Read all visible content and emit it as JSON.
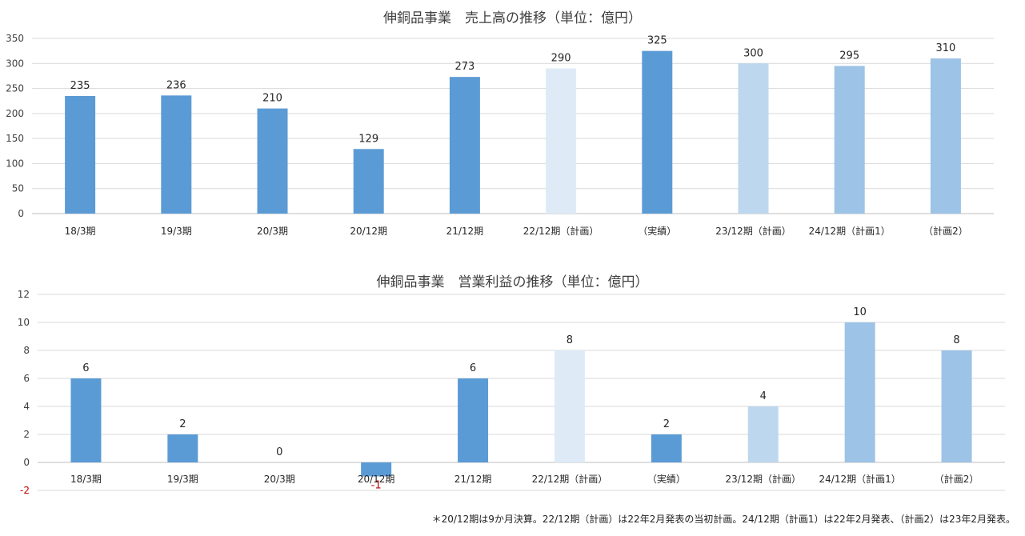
{
  "chart_data": [
    {
      "type": "bar",
      "title": "伸銅品事業　売上高の推移（単位：億円）",
      "categories": [
        "18/3期",
        "19/3期",
        "20/3期",
        "20/12期",
        "21/12期",
        "22/12期（計画）",
        "（実績）",
        "23/12期（計画）",
        "24/12期（計画1）",
        "（計画2）"
      ],
      "values": [
        235,
        236,
        210,
        129,
        273,
        290,
        325,
        300,
        295,
        310
      ],
      "bar_colors": [
        "#5b9bd5",
        "#5b9bd5",
        "#5b9bd5",
        "#5b9bd5",
        "#5b9bd5",
        "#deebf7",
        "#5b9bd5",
        "#bdd7ee",
        "#9dc3e6",
        "#9dc3e6"
      ],
      "ylim": [
        0,
        350
      ],
      "yticks": [
        0,
        50,
        100,
        150,
        200,
        250,
        300,
        350
      ],
      "grid": true
    },
    {
      "type": "bar",
      "title": "伸銅品事業　営業利益の推移（単位：億円）",
      "categories": [
        "18/3期",
        "19/3期",
        "20/3期",
        "20/12期",
        "21/12期",
        "22/12期（計画）",
        "（実績）",
        "23/12期（計画）",
        "24/12期（計画1）",
        "（計画2）"
      ],
      "values": [
        6,
        2,
        0,
        -1,
        6,
        8,
        2,
        4,
        10,
        8
      ],
      "bar_colors": [
        "#5b9bd5",
        "#5b9bd5",
        "#5b9bd5",
        "#5b9bd5",
        "#5b9bd5",
        "#deebf7",
        "#5b9bd5",
        "#bdd7ee",
        "#9dc3e6",
        "#9dc3e6"
      ],
      "negative_color": "#c00000",
      "ylim": [
        -2,
        12
      ],
      "yticks": [
        -2,
        0,
        2,
        4,
        6,
        8,
        10,
        12
      ],
      "grid": true
    }
  ],
  "footnote": "＊20/12期は9か月決算。22/12期（計画）は22年2月発表の当初計画。24/12期（計画1）は22年2月発表、（計画2）は23年2月発表。"
}
